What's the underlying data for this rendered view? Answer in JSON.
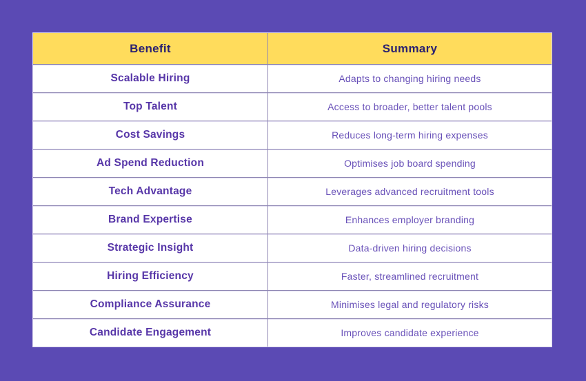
{
  "page": {
    "background_color": "#5b4ab4",
    "header_bg_color": "#ffdc5c",
    "header_text_color": "#2b2171",
    "benefit_text_color": "#5736a8",
    "summary_text_color": "#6850b8",
    "grid_line_color": "#8e86b3"
  },
  "chart_data": {
    "type": "table",
    "columns": [
      "Benefit",
      "Summary"
    ],
    "rows": [
      [
        "Scalable Hiring",
        "Adapts to changing hiring needs"
      ],
      [
        "Top Talent",
        "Access to broader, better talent pools"
      ],
      [
        "Cost Savings",
        "Reduces long-term hiring expenses"
      ],
      [
        "Ad Spend Reduction",
        "Optimises job board spending"
      ],
      [
        "Tech Advantage",
        "Leverages advanced recruitment tools"
      ],
      [
        "Brand Expertise",
        "Enhances employer branding"
      ],
      [
        "Strategic Insight",
        "Data-driven hiring decisions"
      ],
      [
        "Hiring Efficiency",
        "Faster, streamlined recruitment"
      ],
      [
        "Compliance Assurance",
        "Minimises legal and regulatory risks"
      ],
      [
        "Candidate Engagement",
        "Improves candidate experience"
      ]
    ]
  }
}
